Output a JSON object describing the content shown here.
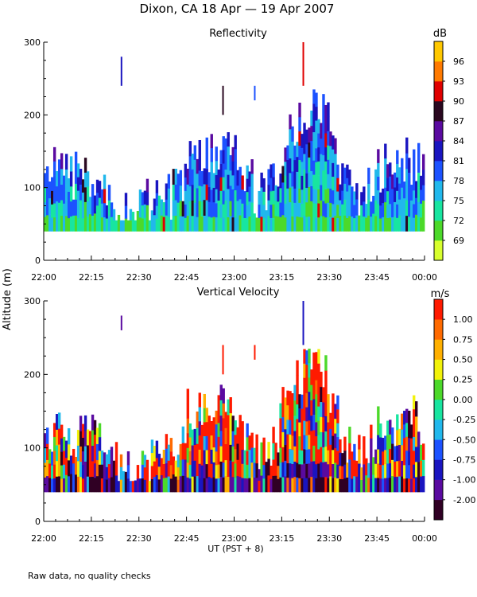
{
  "title": "Dixon, CA 18 Apr — 19 Apr 2007",
  "footer_note": "Raw data, no quality checks",
  "ylabel_shared": "Altitude (m)",
  "chart_data": [
    {
      "type": "heatmap",
      "title": "Reflectivity",
      "colorbar_unit": "dB",
      "colorbar_ticks": [
        "69",
        "72",
        "75",
        "78",
        "81",
        "84",
        "87",
        "90",
        "93",
        "96"
      ],
      "colorbar_colors": [
        "#d8ff2e",
        "#4cd92a",
        "#18e5a0",
        "#21b8ec",
        "#1c52ff",
        "#1a15c0",
        "#5a0aa0",
        "#2a0820",
        "#e00000",
        "#ff7a00",
        "#ffc800"
      ],
      "ylim": [
        0,
        300
      ],
      "yticks": [
        0,
        100,
        200,
        300
      ],
      "xlabel": "UT  (PST + 8)",
      "xtick_labels": [
        "22:00",
        "22:15",
        "22:30",
        "22:45",
        "23:00",
        "23:15",
        "23:30",
        "23:45",
        "00:00"
      ],
      "xlim_minutes": [
        0,
        120
      ],
      "data_bottom_m": 40,
      "high_echoes": [
        {
          "t_min": 24.5,
          "bottom_m": 240,
          "top_m": 280,
          "level": 5
        },
        {
          "t_min": 56.5,
          "bottom_m": 200,
          "top_m": 240,
          "level": 7
        },
        {
          "t_min": 66.5,
          "bottom_m": 220,
          "top_m": 240,
          "level": 4
        },
        {
          "t_min": 81.8,
          "bottom_m": 240,
          "top_m": 300,
          "level": 8
        }
      ]
    },
    {
      "type": "heatmap",
      "title": "Vertical Velocity",
      "colorbar_unit": "m/s",
      "colorbar_ticks": [
        "-2.00",
        "-1.00",
        "-0.75",
        "-0.50",
        "-0.25",
        "0.00",
        "0.25",
        "0.50",
        "0.75",
        "1.00"
      ],
      "colorbar_colors": [
        "#300024",
        "#5a0aa0",
        "#1a15c0",
        "#1c52ff",
        "#21b8ec",
        "#18e5a0",
        "#4cd92a",
        "#f2f20a",
        "#ffb000",
        "#ff6a00",
        "#ff1a00"
      ],
      "ylim": [
        0,
        300
      ],
      "yticks": [
        0,
        100,
        200,
        300
      ],
      "xlabel": "UT  (PST + 8)",
      "xtick_labels": [
        "22:00",
        "22:15",
        "22:30",
        "22:45",
        "23:00",
        "23:15",
        "23:30",
        "23:45",
        "00:00"
      ],
      "xlim_minutes": [
        0,
        120
      ],
      "data_bottom_m": 40,
      "high_echoes": [
        {
          "t_min": 24.5,
          "bottom_m": 260,
          "top_m": 280,
          "level": 1
        },
        {
          "t_min": 56.5,
          "bottom_m": 200,
          "top_m": 240,
          "level": 10
        },
        {
          "t_min": 66.5,
          "bottom_m": 220,
          "top_m": 240,
          "level": 10
        },
        {
          "t_min": 81.8,
          "bottom_m": 240,
          "top_m": 300,
          "level": 2
        }
      ]
    }
  ]
}
